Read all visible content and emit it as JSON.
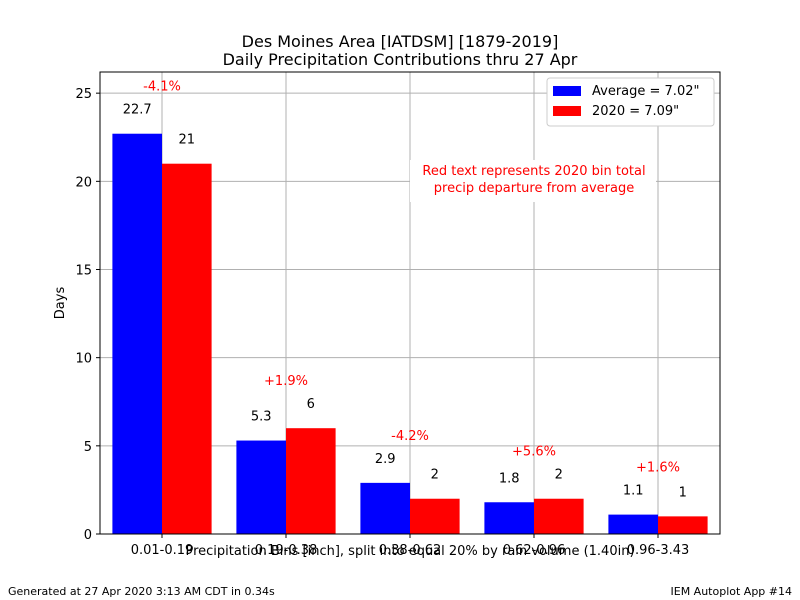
{
  "chart_data": {
    "type": "bar",
    "title": "Des Moines Area [IATDSM] [1879-2019]",
    "subtitle": "Daily Precipitation Contributions thru 27 Apr",
    "xlabel": "Precipitation Bins [inch], split into equal 20% by rain volume (1.40in)",
    "ylabel": "Days",
    "ylim": [
      0,
      26.2
    ],
    "yticks": [
      0,
      5,
      10,
      15,
      20,
      25
    ],
    "grid": true,
    "categories": [
      "0.01-0.19",
      "0.19-0.38",
      "0.38-0.62",
      "0.62-0.96",
      "0.96-3.43"
    ],
    "series": [
      {
        "name": "Average = 7.02\"",
        "color": "#0000ff",
        "values": [
          22.7,
          5.3,
          2.9,
          1.8,
          1.1
        ],
        "labels": [
          "22.7",
          "5.3",
          "2.9",
          "1.8",
          "1.1"
        ]
      },
      {
        "name": "2020 = 7.09\"",
        "color": "#ff0000",
        "values": [
          21,
          6,
          2,
          2,
          1
        ],
        "labels": [
          "21",
          "6",
          "2",
          "2",
          "1"
        ]
      }
    ],
    "departures": [
      "-4.1%",
      "+1.9%",
      "-4.2%",
      "+5.6%",
      "+1.6%"
    ],
    "departure_color": "#ff0000",
    "annotation": {
      "line1": "Red text represents 2020 bin total",
      "line2": "precip departure from average"
    },
    "legend_position": "top-right"
  },
  "footer": {
    "left": "Generated at 27 Apr 2020 3:13 AM CDT in 0.34s",
    "right": "IEM Autoplot App #14"
  }
}
